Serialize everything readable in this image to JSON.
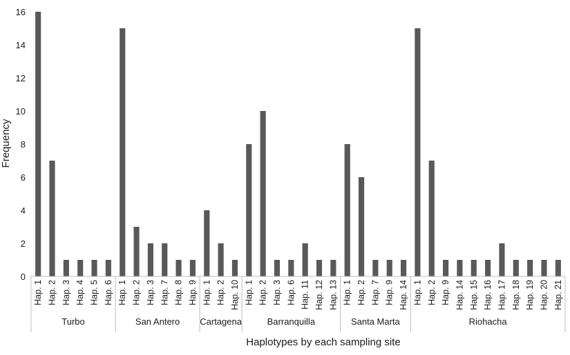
{
  "chart_data": {
    "type": "bar",
    "xlabel": "Haplotypes by each sampling site",
    "ylabel": "Frequency",
    "ylim": [
      0,
      16
    ],
    "yticks": [
      0,
      2,
      4,
      6,
      8,
      10,
      12,
      14,
      16
    ],
    "bar_color": "#595959",
    "grid": false,
    "groups": [
      {
        "name": "Turbo",
        "categories": [
          "Hap. 1",
          "Hap. 2",
          "Hap. 3",
          "Hap. 4",
          "Hap. 5",
          "Hap. 6"
        ],
        "values": [
          16,
          7,
          1,
          1,
          1,
          1
        ]
      },
      {
        "name": "San Antero",
        "categories": [
          "Hap. 1",
          "Hap. 2",
          "Hap. 3",
          "Hap. 7",
          "Hap. 8",
          "Hap. 9"
        ],
        "values": [
          15,
          3,
          2,
          2,
          1,
          1
        ]
      },
      {
        "name": "Cartagena",
        "categories": [
          "Hap. 1",
          "Hap. 2",
          "Hap. 10"
        ],
        "values": [
          4,
          2,
          1
        ]
      },
      {
        "name": "Barranquilla",
        "categories": [
          "Hap. 1",
          "Hap. 2",
          "Hap. 3",
          "Hap. 6",
          "Hap. 11",
          "Hap. 12",
          "Hap. 13"
        ],
        "values": [
          8,
          10,
          1,
          1,
          2,
          1,
          1
        ]
      },
      {
        "name": "Santa Marta",
        "categories": [
          "Hap. 1",
          "Hap. 2",
          "Hap. 7",
          "Hap. 9",
          "Hap. 14"
        ],
        "values": [
          8,
          6,
          1,
          1,
          1
        ]
      },
      {
        "name": "Riohacha",
        "categories": [
          "Hap. 1",
          "Hap. 2",
          "Hap. 9",
          "Hap. 14",
          "Hap. 15",
          "Hap. 16",
          "Hap. 17",
          "Hap. 18",
          "Hap. 19",
          "Hap. 20",
          "Hap. 21"
        ],
        "values": [
          15,
          7,
          1,
          1,
          1,
          1,
          2,
          1,
          1,
          1,
          1
        ]
      }
    ]
  }
}
